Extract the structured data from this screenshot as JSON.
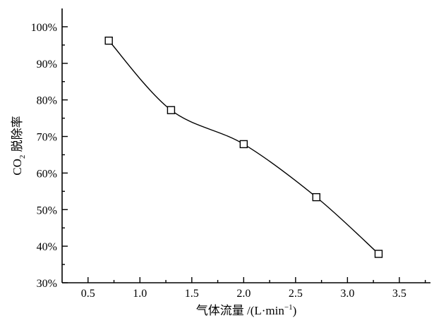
{
  "chart_data": {
    "type": "line",
    "title": "",
    "xlabel": {
      "main": "气体流量 /(L·min",
      "sup": "−1",
      "tail": ")"
    },
    "ylabel": {
      "pre": "CO",
      "sub": "2",
      "post": " 脱除率"
    },
    "xlim": [
      0.25,
      3.8
    ],
    "ylim": [
      30,
      105
    ],
    "xticks": [
      0.5,
      1.0,
      1.5,
      2.0,
      2.5,
      3.0,
      3.5
    ],
    "xtick_labels": [
      "0.5",
      "1.0",
      "1.5",
      "2.0",
      "2.5",
      "3.0",
      "3.5"
    ],
    "yticks": [
      30,
      40,
      50,
      60,
      70,
      80,
      90,
      100
    ],
    "ytick_labels": [
      "30%",
      "40%",
      "50%",
      "60%",
      "70%",
      "80%",
      "90%",
      "100%"
    ],
    "grid": false,
    "series": [
      {
        "marker": "open-square",
        "x": [
          0.7,
          1.3,
          2.0,
          2.7,
          3.3
        ],
        "y": [
          96.2,
          77.2,
          67.9,
          53.4,
          37.9
        ]
      }
    ]
  }
}
